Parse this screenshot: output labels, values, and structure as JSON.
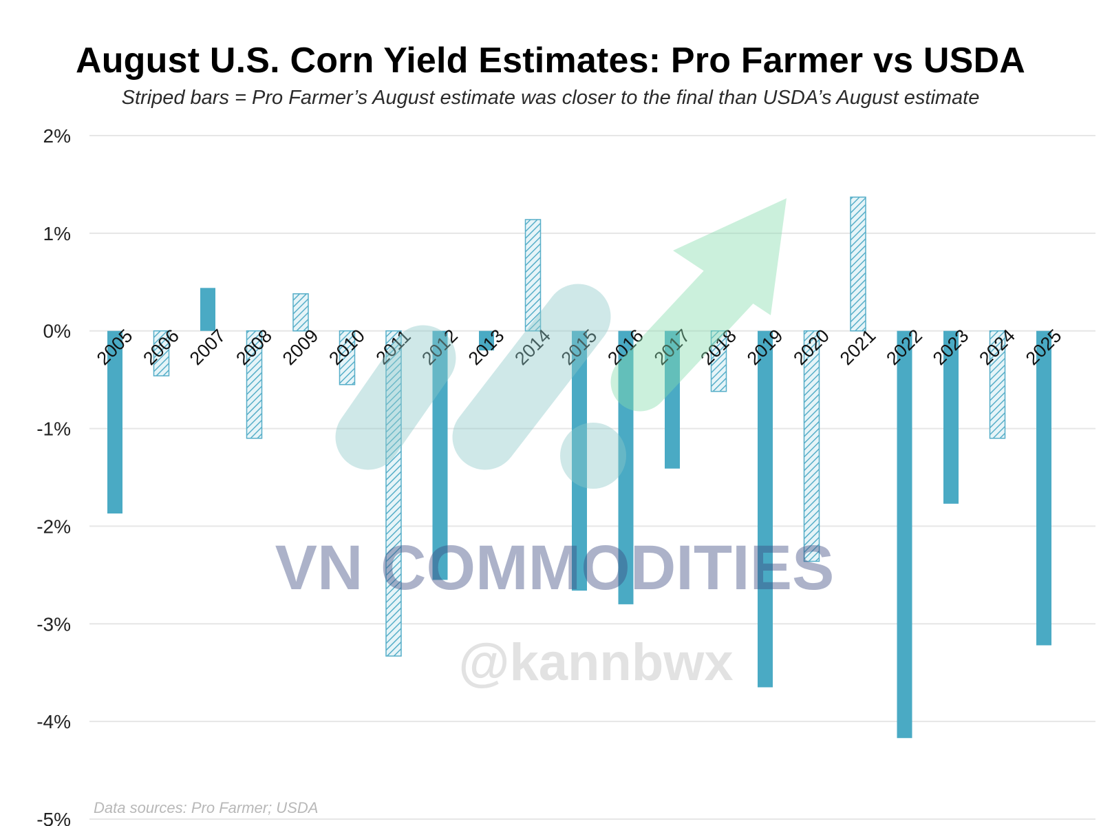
{
  "chart_data": {
    "type": "bar",
    "title": "August U.S. Corn Yield Estimates: Pro Farmer vs USDA",
    "subtitle": "Striped bars = Pro Farmer’s August estimate was closer to the final than USDA’s August estimate",
    "xlabel": "",
    "ylabel": "",
    "ylim": [
      -5,
      2
    ],
    "y_ticks": [
      2,
      1,
      0,
      -1,
      -2,
      -3,
      -4,
      -5
    ],
    "y_tick_labels": [
      "2%",
      "1%",
      "0%",
      "-1%",
      "-2%",
      "-3%",
      "-4%",
      "-5%"
    ],
    "grid": true,
    "categories": [
      "2005",
      "2006",
      "2007",
      "2008",
      "2009",
      "2010",
      "2011",
      "2012",
      "2013",
      "2014",
      "2015",
      "2016",
      "2017",
      "2018",
      "2019",
      "2020",
      "2021",
      "2022",
      "2023",
      "2024",
      "2025"
    ],
    "values": [
      -1.87,
      -0.46,
      0.44,
      -1.1,
      0.38,
      -0.55,
      -3.33,
      -2.55,
      -0.2,
      1.14,
      -2.66,
      -2.8,
      -1.41,
      -0.62,
      -3.65,
      -2.36,
      1.37,
      -4.17,
      -1.77,
      -1.1,
      -3.22
    ],
    "striped": [
      false,
      true,
      false,
      true,
      true,
      true,
      true,
      false,
      false,
      true,
      false,
      false,
      false,
      true,
      false,
      true,
      true,
      false,
      false,
      true,
      false
    ],
    "colors": {
      "solid_bar": "#4aaac4",
      "striped_bar": "#56aec8",
      "striped_bg": "#e6f4f8",
      "grid": "#e6e6e6"
    },
    "source_note": "Data sources: Pro Farmer; USDA"
  },
  "watermark": {
    "brand": "VN COMMODITIES",
    "handle": "@kannbwx",
    "colors": {
      "text": "#3b4a80",
      "handle": "#bbbbbb",
      "logo_teal": "#8ec9c9",
      "logo_green": "#86dcae"
    }
  }
}
